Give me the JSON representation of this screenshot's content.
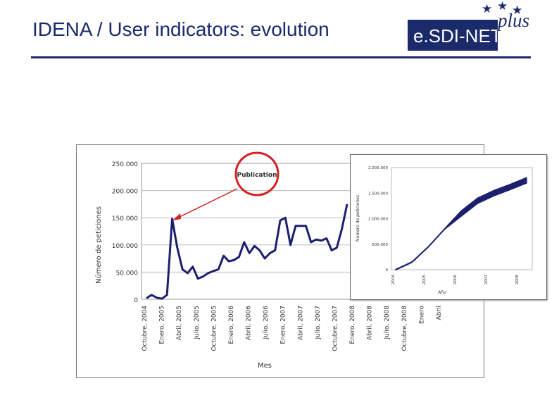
{
  "slide": {
    "title": "IDENA / User indicators: evolution"
  },
  "logo": {
    "text": "e.SDI-NET",
    "suffix": "plus",
    "star_icon": "star"
  },
  "annotation": {
    "label": "Publication",
    "ring_color": "#d42020",
    "arrow_color": "#cc2222"
  },
  "colors": {
    "series": "#1b1f6e",
    "title": "#1b2a6b"
  },
  "chart_data": [
    {
      "type": "line",
      "title": "",
      "xlabel": "Mes",
      "ylabel": "Número de peticiones",
      "ylim": [
        0,
        250000
      ],
      "y_ticks": [
        "250.000",
        "200.000",
        "150.000",
        "100.000",
        "50.000",
        "0"
      ],
      "x_tick_labels": [
        "Octubre, 2004",
        "Enero, 2005",
        "Abril, 2005",
        "Julio, 2005",
        "Octubre, 2005",
        "Enero, 2006",
        "Abril, 2006",
        "Julio, 2006",
        "Enero, 2007",
        "Abril, 2007",
        "Julio, 2007",
        "Octubre, 2007",
        "Enero, 2008",
        "Abril, 2008",
        "Julio, 2008",
        "Octubre, 2008",
        "Enero",
        "Abril"
      ],
      "grid": true,
      "series": [
        {
          "values": [
            2000,
            8000,
            3000,
            1000,
            8000,
            148000,
            95000,
            55000,
            48000,
            60000,
            38000,
            42000,
            48000,
            52000,
            55000,
            80000,
            70000,
            72000,
            78000,
            105000,
            85000,
            98000,
            90000,
            75000,
            85000,
            90000,
            145000,
            150000,
            100000,
            135000,
            135000,
            135000,
            105000,
            110000,
            108000,
            112000,
            90000,
            95000,
            130000,
            175000
          ]
        }
      ]
    },
    {
      "type": "line",
      "title": "",
      "xlabel": "Año",
      "ylabel": "Número de peticiones",
      "ylim": [
        0,
        2000000
      ],
      "y_ticks": [
        "2.000.000",
        "1.500.000",
        "1.000.000",
        "500.000",
        "0"
      ],
      "x_tick_labels": [
        "2004",
        "2005",
        "2006",
        "2007",
        "2008"
      ],
      "grid": false,
      "series": [
        {
          "values": [
            0,
            150000,
            450000,
            800000,
            1100000,
            1350000,
            1500000,
            1620000,
            1750000
          ]
        }
      ]
    }
  ]
}
